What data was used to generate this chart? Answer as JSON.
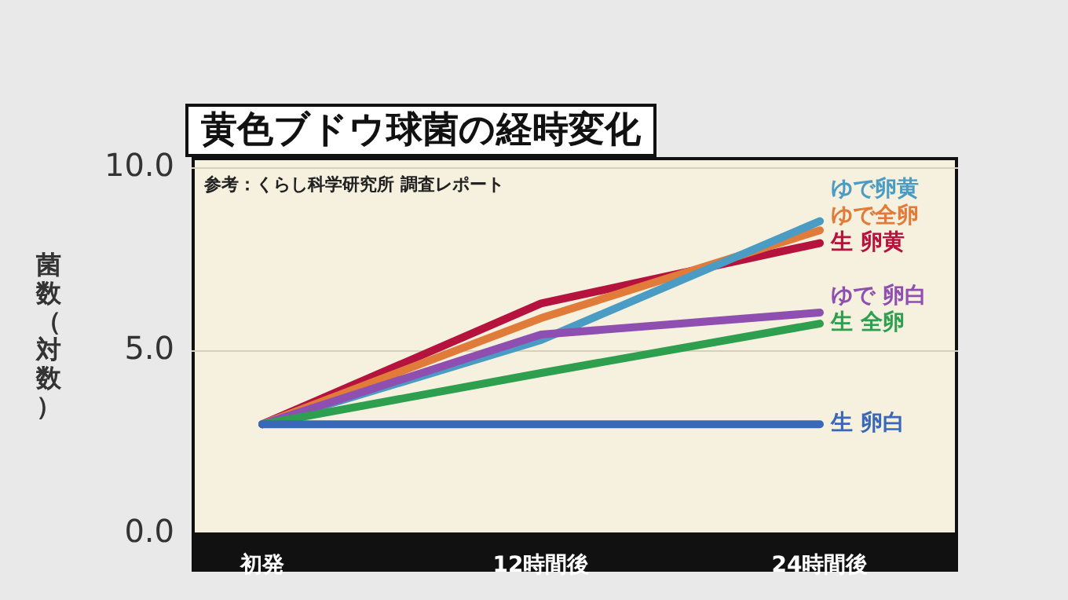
{
  "chart_data": {
    "type": "line",
    "title": "黄色ブドウ球菌の経時変化",
    "ylabel": "菌数（対数）",
    "annotations": [
      "参考：くらし科学研究所 調査レポート"
    ],
    "categories": [
      "初発",
      "12時間後",
      "24時間後"
    ],
    "ylim": [
      0,
      10
    ],
    "yticks": [
      {
        "value": 0,
        "label": "0.0"
      },
      {
        "value": 5,
        "label": "5.0"
      },
      {
        "value": 10,
        "label": "10.0"
      }
    ],
    "grid": "y",
    "marker": "none",
    "series": [
      {
        "name": "生 卵白",
        "color": "#3a68b8",
        "values": [
          3.0,
          3.0,
          3.0
        ]
      },
      {
        "name": "生 全卵",
        "color": "#2e9e4f",
        "values": [
          3.0,
          4.4,
          5.75
        ]
      },
      {
        "name": "ゆで 卵白",
        "color": "#8e4fb0",
        "values": [
          3.0,
          5.45,
          6.05
        ]
      },
      {
        "name": "ゆで卵黄",
        "color": "#4a9cc4",
        "values": [
          3.0,
          5.3,
          8.55
        ]
      },
      {
        "name": "ゆで全卵",
        "color": "#e07b39",
        "values": [
          3.0,
          5.9,
          8.3
        ]
      },
      {
        "name": "生 卵黄",
        "color": "#b5123e",
        "values": [
          3.0,
          6.3,
          7.95
        ]
      }
    ]
  }
}
